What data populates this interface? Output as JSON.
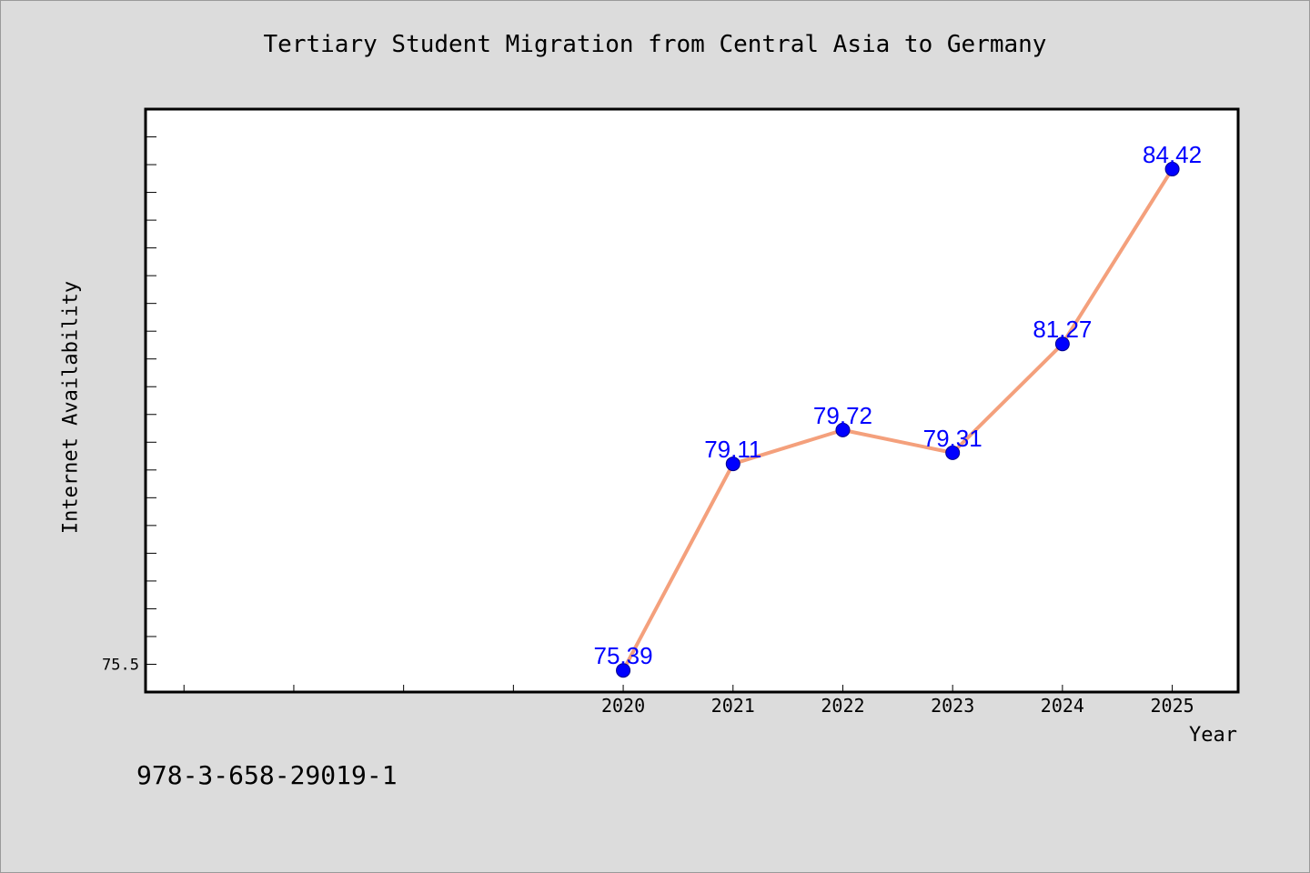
{
  "chart_data": {
    "type": "line",
    "title": "Tertiary Student Migration from Central Asia to Germany",
    "xlabel": "Year",
    "ylabel": "Internet Availability",
    "x": [
      2020,
      2021,
      2022,
      2023,
      2024,
      2025
    ],
    "values": [
      75.39,
      79.11,
      79.72,
      79.31,
      81.27,
      84.42
    ],
    "data_labels": [
      "75.39",
      "79.11",
      "79.72",
      "79.31",
      "81.27",
      "84.42"
    ],
    "x_ticks": [
      "2020",
      "2021",
      "2022",
      "2023",
      "2024",
      "2025"
    ],
    "y_ticks": [
      "75.5"
    ],
    "xlim": [
      2015.65,
      2025.6
    ],
    "ylim": [
      75.0,
      85.5
    ],
    "grid": false,
    "line_color": "#f4a07c",
    "marker_color": "#0000ff"
  },
  "footer": {
    "code": "978-3-658-29019-1"
  }
}
